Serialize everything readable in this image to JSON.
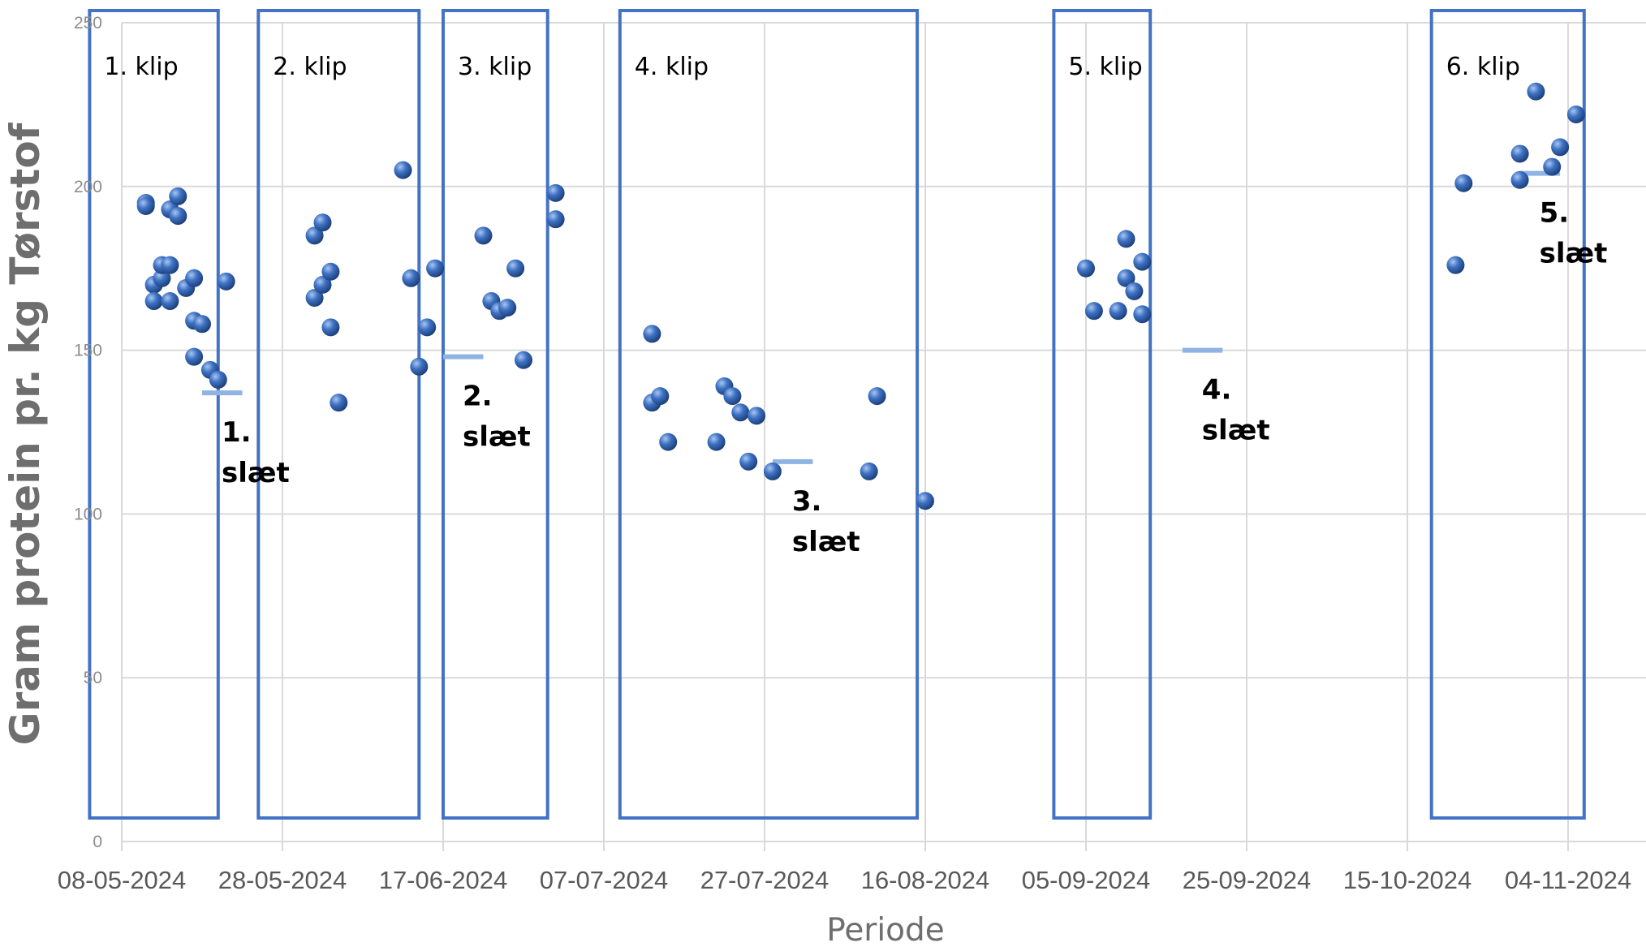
{
  "chart_data": {
    "type": "scatter",
    "title": "",
    "xlabel": "Periode",
    "ylabel": "Gram protein pr. kg Tørstof",
    "ylim": [
      0,
      250
    ],
    "yticks": [
      0,
      50,
      100,
      150,
      200,
      250
    ],
    "xlim": [
      "2024-05-08",
      "2024-11-09"
    ],
    "xticks": [
      {
        "date": "2024-05-08",
        "label": "08-05-2024"
      },
      {
        "date": "2024-05-28",
        "label": "28-05-2024"
      },
      {
        "date": "2024-06-17",
        "label": "17-06-2024"
      },
      {
        "date": "2024-07-07",
        "label": "07-07-2024"
      },
      {
        "date": "2024-07-27",
        "label": "27-07-2024"
      },
      {
        "date": "2024-08-16",
        "label": "16-08-2024"
      },
      {
        "date": "2024-09-05",
        "label": "05-09-2024"
      },
      {
        "date": "2024-09-25",
        "label": "25-09-2024"
      },
      {
        "date": "2024-10-15",
        "label": "15-10-2024"
      },
      {
        "date": "2024-11-04",
        "label": "04-11-2024"
      }
    ],
    "grid": true,
    "colors": {
      "points": "#3a6fc0",
      "harvest": "#8fb4e3",
      "frames": "#4472c4",
      "grid": "#d9d9d9"
    },
    "series": [
      {
        "points": [
          [
            "2024-05-11",
            195
          ],
          [
            "2024-05-11",
            194
          ],
          [
            "2024-05-12",
            170
          ],
          [
            "2024-05-12",
            165
          ],
          [
            "2024-05-13",
            172
          ],
          [
            "2024-05-13",
            176
          ],
          [
            "2024-05-14",
            193
          ],
          [
            "2024-05-14",
            165
          ],
          [
            "2024-05-14",
            176
          ],
          [
            "2024-05-15",
            197
          ],
          [
            "2024-05-15",
            191
          ],
          [
            "2024-05-16",
            169
          ],
          [
            "2024-05-17",
            172
          ],
          [
            "2024-05-17",
            159
          ],
          [
            "2024-05-17",
            148
          ],
          [
            "2024-05-18",
            158
          ],
          [
            "2024-05-19",
            144
          ],
          [
            "2024-05-20",
            141
          ],
          [
            "2024-05-21",
            171
          ],
          [
            "2024-06-01",
            166
          ],
          [
            "2024-06-01",
            185
          ],
          [
            "2024-06-02",
            189
          ],
          [
            "2024-06-02",
            170
          ],
          [
            "2024-06-03",
            174
          ],
          [
            "2024-06-03",
            157
          ],
          [
            "2024-06-04",
            134
          ],
          [
            "2024-06-12",
            205
          ],
          [
            "2024-06-13",
            172
          ],
          [
            "2024-06-14",
            145
          ],
          [
            "2024-06-15",
            157
          ],
          [
            "2024-06-16",
            175
          ],
          [
            "2024-06-22",
            185
          ],
          [
            "2024-06-23",
            165
          ],
          [
            "2024-06-24",
            162
          ],
          [
            "2024-06-25",
            163
          ],
          [
            "2024-06-26",
            175
          ],
          [
            "2024-06-27",
            147
          ],
          [
            "2024-07-01",
            198
          ],
          [
            "2024-07-01",
            190
          ],
          [
            "2024-07-13",
            155
          ],
          [
            "2024-07-13",
            134
          ],
          [
            "2024-07-14",
            136
          ],
          [
            "2024-07-15",
            122
          ],
          [
            "2024-07-21",
            122
          ],
          [
            "2024-07-22",
            139
          ],
          [
            "2024-07-23",
            136
          ],
          [
            "2024-07-24",
            131
          ],
          [
            "2024-07-25",
            116
          ],
          [
            "2024-07-26",
            130
          ],
          [
            "2024-07-28",
            113
          ],
          [
            "2024-08-09",
            113
          ],
          [
            "2024-08-10",
            136
          ],
          [
            "2024-08-16",
            104
          ],
          [
            "2024-09-05",
            175
          ],
          [
            "2024-09-06",
            162
          ],
          [
            "2024-09-09",
            162
          ],
          [
            "2024-09-10",
            184
          ],
          [
            "2024-09-10",
            172
          ],
          [
            "2024-09-11",
            168
          ],
          [
            "2024-09-12",
            177
          ],
          [
            "2024-09-12",
            161
          ],
          [
            "2024-10-21",
            176
          ],
          [
            "2024-10-22",
            201
          ],
          [
            "2024-10-29",
            202
          ],
          [
            "2024-10-29",
            210
          ],
          [
            "2024-10-31",
            229
          ],
          [
            "2024-11-02",
            206
          ],
          [
            "2024-11-03",
            212
          ],
          [
            "2024-11-05",
            222
          ]
        ]
      }
    ],
    "harvests": [
      {
        "start": "2024-05-18",
        "end": "2024-05-23",
        "value": 137,
        "label_line1": "1.",
        "label_line2": "slæt"
      },
      {
        "start": "2024-06-17",
        "end": "2024-06-22",
        "value": 148,
        "label_line1": "2.",
        "label_line2": "slæt"
      },
      {
        "start": "2024-07-28",
        "end": "2024-08-02",
        "value": 116,
        "label_line1": "3.",
        "label_line2": "slæt"
      },
      {
        "start": "2024-09-17",
        "end": "2024-09-22",
        "value": 150,
        "label_line1": "4.",
        "label_line2": "slæt"
      },
      {
        "start": "2024-10-29",
        "end": "2024-11-03",
        "value": 204,
        "label_line1": "5.",
        "label_line2": "slæt"
      }
    ],
    "periods": [
      {
        "label": "1. klip",
        "start": "2024-05-04",
        "end": "2024-05-20"
      },
      {
        "label": "2. klip",
        "start": "2024-05-25",
        "end": "2024-06-14"
      },
      {
        "label": "3. klip",
        "start": "2024-06-17",
        "end": "2024-06-30"
      },
      {
        "label": "4. klip",
        "start": "2024-07-09",
        "end": "2024-08-15"
      },
      {
        "label": "5. klip",
        "start": "2024-09-01",
        "end": "2024-09-13"
      },
      {
        "label": "6. klip",
        "start": "2024-10-18",
        "end": "2024-11-06"
      }
    ]
  }
}
